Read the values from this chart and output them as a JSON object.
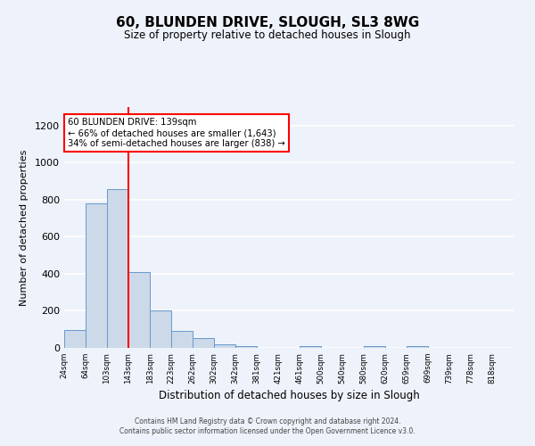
{
  "title": "60, BLUNDEN DRIVE, SLOUGH, SL3 8WG",
  "subtitle": "Size of property relative to detached houses in Slough",
  "xlabel": "Distribution of detached houses by size in Slough",
  "ylabel": "Number of detached properties",
  "bar_color": "#ccd9e8",
  "bar_edge_color": "#6699cc",
  "background_color": "#eef2fa",
  "grid_color": "white",
  "bin_labels": [
    "24sqm",
    "64sqm",
    "103sqm",
    "143sqm",
    "183sqm",
    "223sqm",
    "262sqm",
    "302sqm",
    "342sqm",
    "381sqm",
    "421sqm",
    "461sqm",
    "500sqm",
    "540sqm",
    "580sqm",
    "620sqm",
    "659sqm",
    "699sqm",
    "739sqm",
    "778sqm",
    "818sqm"
  ],
  "bar_heights": [
    95,
    780,
    855,
    410,
    200,
    90,
    53,
    20,
    12,
    0,
    0,
    8,
    0,
    0,
    8,
    0,
    8,
    0,
    0,
    0,
    0
  ],
  "ylim": [
    0,
    1300
  ],
  "yticks": [
    0,
    200,
    400,
    600,
    800,
    1000,
    1200
  ],
  "property_line_x": 143,
  "bin_edges_sqm": [
    24,
    64,
    103,
    143,
    183,
    223,
    262,
    302,
    342,
    381,
    421,
    461,
    500,
    540,
    580,
    620,
    659,
    699,
    739,
    778,
    818,
    858
  ],
  "annotation_title": "60 BLUNDEN DRIVE: 139sqm",
  "annotation_line1": "← 66% of detached houses are smaller (1,643)",
  "annotation_line2": "34% of semi-detached houses are larger (838) →",
  "annotation_box_color": "white",
  "annotation_box_edge_color": "red",
  "vline_color": "red",
  "footer_line1": "Contains HM Land Registry data © Crown copyright and database right 2024.",
  "footer_line2": "Contains public sector information licensed under the Open Government Licence v3.0."
}
